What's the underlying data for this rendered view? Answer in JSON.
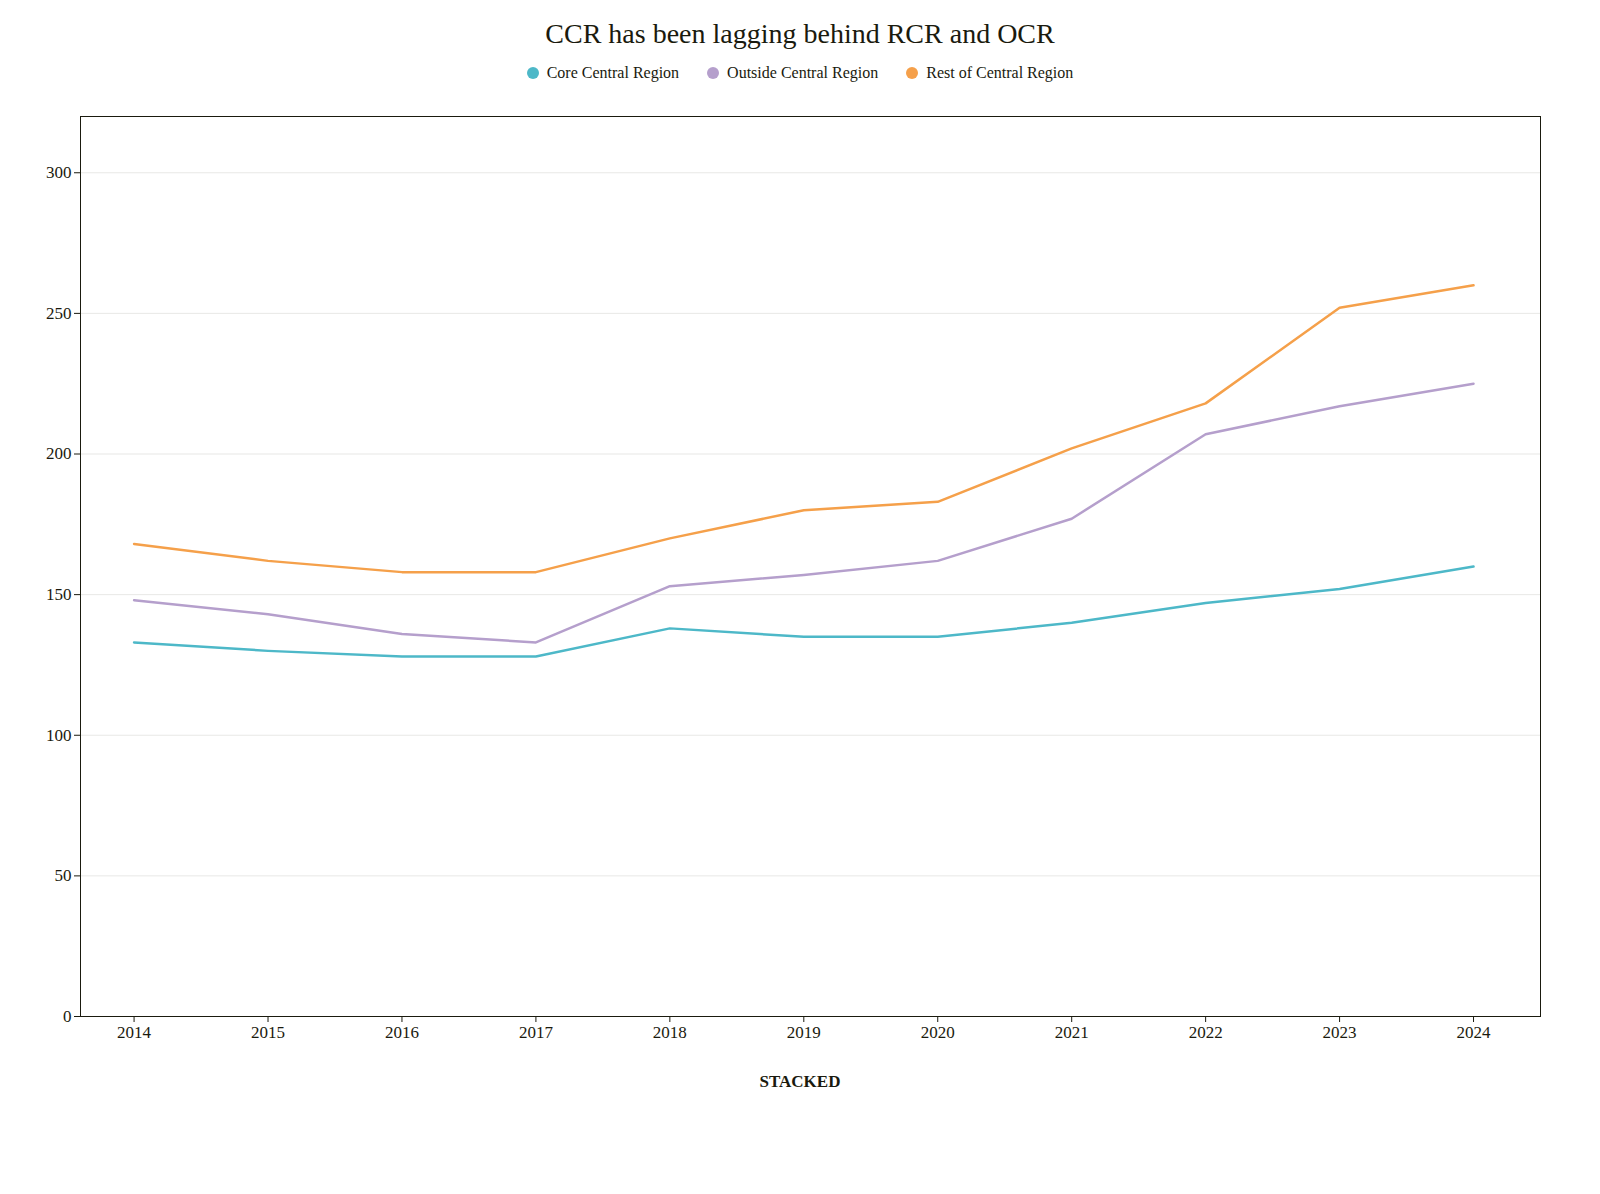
{
  "chart_data": {
    "type": "line",
    "title": "CCR has been lagging behind RCR and OCR",
    "x": [
      2014,
      2015,
      2016,
      2017,
      2018,
      2019,
      2020,
      2021,
      2022,
      2023,
      2024
    ],
    "series": [
      {
        "name": "Core Central Region",
        "color": "#4db8c8",
        "values": [
          133,
          130,
          128,
          128,
          138,
          135,
          135,
          140,
          147,
          152,
          160
        ]
      },
      {
        "name": "Outside Central Region",
        "color": "#b59fcc",
        "values": [
          148,
          143,
          136,
          133,
          153,
          157,
          162,
          177,
          207,
          217,
          225
        ]
      },
      {
        "name": "Rest of Central Region",
        "color": "#f5a04a",
        "values": [
          168,
          162,
          158,
          158,
          170,
          180,
          183,
          202,
          218,
          252,
          260
        ]
      }
    ],
    "xlim": [
      2013.6,
      2024.5
    ],
    "xticks": [
      2014,
      2015,
      2016,
      2017,
      2018,
      2019,
      2020,
      2021,
      2022,
      2023,
      2024
    ],
    "ylim": [
      0,
      320
    ],
    "yticks": [
      0,
      50,
      100,
      150,
      200,
      250,
      300
    ],
    "grid": true,
    "legend": "top",
    "annotations": [
      "STACKED"
    ]
  }
}
